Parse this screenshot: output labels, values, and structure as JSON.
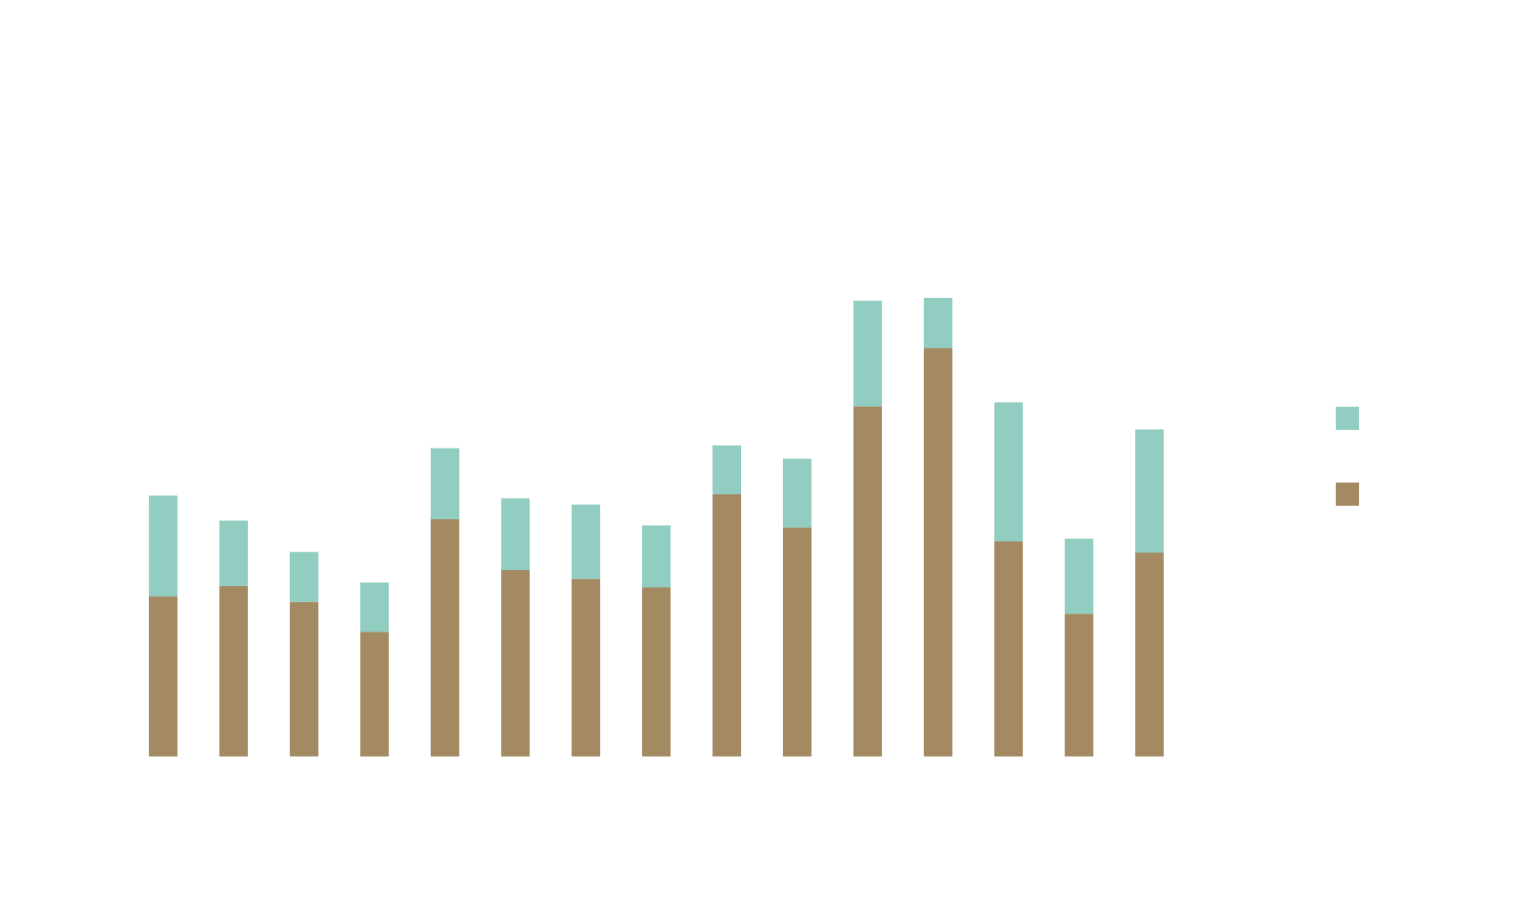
{
  "chart_data": {
    "type": "bar",
    "stacked": true,
    "categories": [
      "",
      "",
      "",
      "",
      "",
      "",
      "",
      "",
      "",
      "",
      "",
      "",
      "",
      "",
      ""
    ],
    "series": [
      {
        "color": "#a38a62",
        "values": [
          230,
          245,
          222,
          179,
          341,
          268,
          255,
          243,
          377,
          329,
          503,
          587,
          309,
          205,
          293
        ]
      },
      {
        "color": "#91cdc0",
        "values": [
          145,
          94,
          72,
          71,
          102,
          103,
          107,
          89,
          70,
          99,
          152,
          72,
          200,
          108,
          177
        ]
      }
    ],
    "ylim": [
      0,
      850
    ],
    "grid": false,
    "legend_position": "right",
    "title": "",
    "xlabel": "",
    "ylabel": ""
  }
}
